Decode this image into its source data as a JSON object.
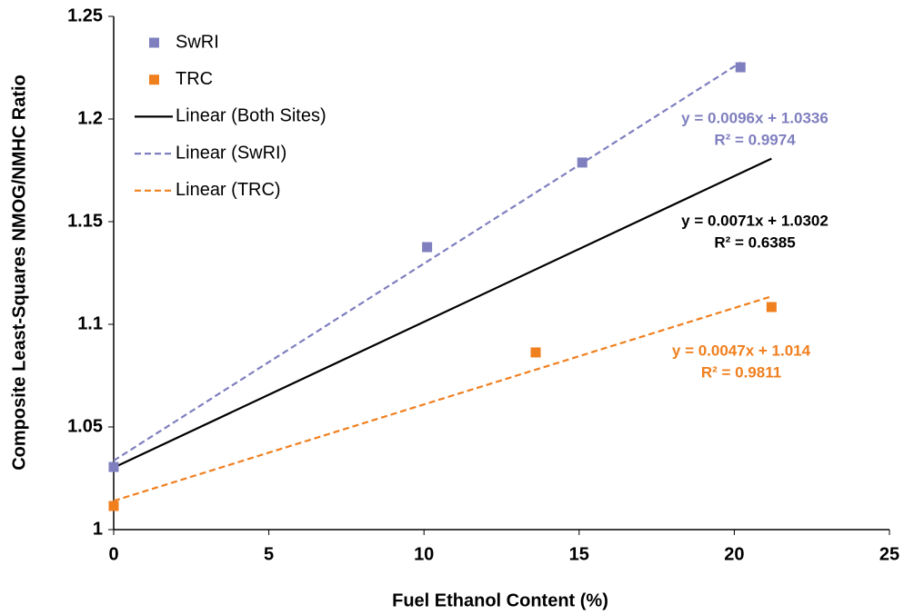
{
  "chart_data": {
    "type": "scatter",
    "x_label": "Fuel Ethanol Content (%)",
    "y_label": "Composite  Least-Squares  NMOG/NMHC  Ratio",
    "xlim": [
      0,
      25
    ],
    "xticks": [
      0,
      5,
      10,
      15,
      20,
      25
    ],
    "ylim": [
      1,
      1.25
    ],
    "yticks": [
      1,
      1.05,
      1.1,
      1.15,
      1.2,
      1.25
    ],
    "grid": false,
    "legend": "upper left",
    "series": [
      {
        "name": "SwRI",
        "color": "#7f7fc0",
        "style": "marker",
        "x": [
          0,
          10.1,
          15.1,
          20.2
        ],
        "values": [
          1.0305,
          1.1376,
          1.1788,
          1.2252
        ]
      },
      {
        "name": "TRC",
        "color": "#f07f1e",
        "style": "marker",
        "x": [
          0,
          13.6,
          21.2
        ],
        "values": [
          1.0115,
          1.0863,
          1.1084
        ]
      },
      {
        "name": "Linear (Both Sites)",
        "color": "#000000",
        "style": "solid",
        "x": [
          0,
          21.2
        ],
        "values": [
          1.0302,
          1.1807
        ]
      },
      {
        "name": "Linear (SwRI)",
        "color": "#7f7fc0",
        "style": "dashed",
        "x": [
          0,
          20.2
        ],
        "values": [
          1.0336,
          1.2275
        ]
      },
      {
        "name": "Linear (TRC)",
        "color": "#f07f1e",
        "style": "dashed",
        "x": [
          0,
          21.2
        ],
        "values": [
          1.014,
          1.1136
        ]
      }
    ],
    "annotations": [
      {
        "lines": [
          "y = 0.0096x + 1.0336",
          "R² = 0.9974"
        ],
        "color": "#7f7fc0"
      },
      {
        "lines": [
          "y = 0.0071x + 1.0302",
          "R² = 0.6385"
        ],
        "color": "#000000"
      },
      {
        "lines": [
          "y = 0.0047x + 1.014",
          "R² = 0.9811"
        ],
        "color": "#f07f1e"
      }
    ]
  }
}
